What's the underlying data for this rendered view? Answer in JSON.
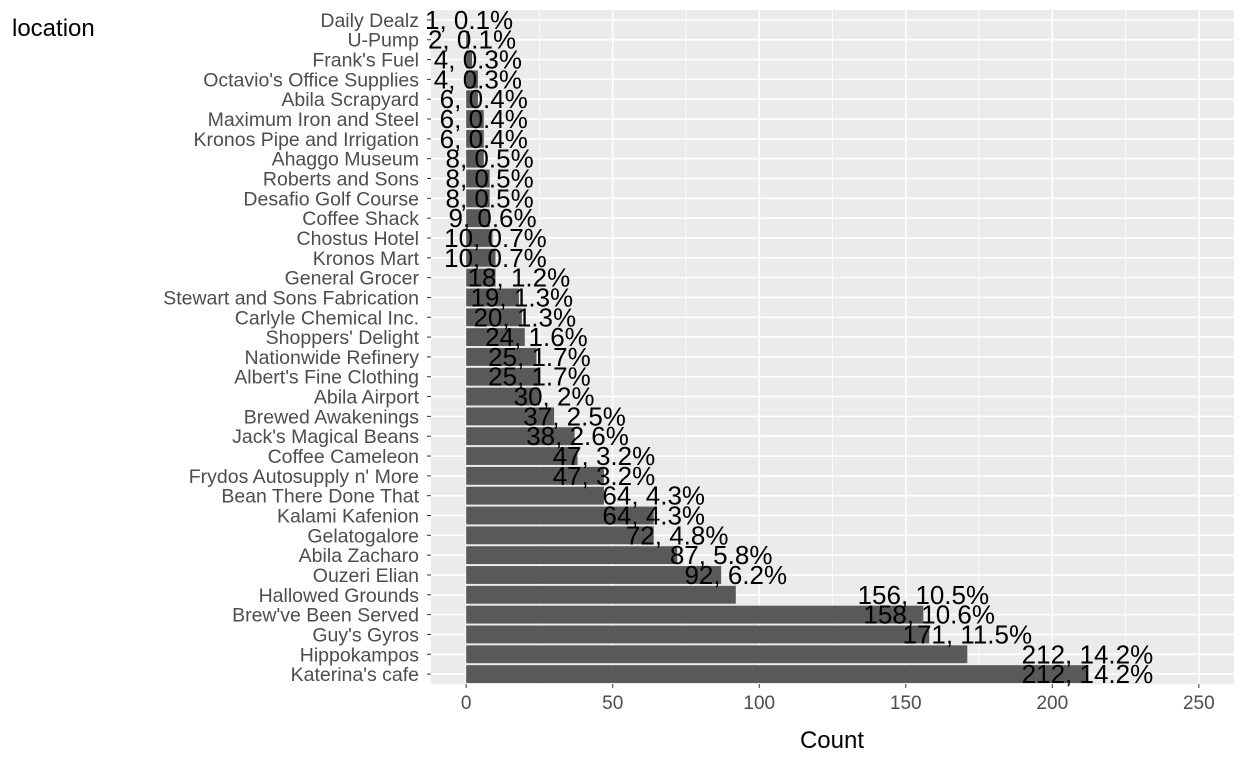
{
  "chart_data": {
    "type": "bar",
    "orientation": "horizontal",
    "title": "",
    "legend_title": "location",
    "xlabel": "Count",
    "ylabel": "",
    "xlim": [
      -12,
      262
    ],
    "x_ticks": [
      0,
      50,
      100,
      150,
      200,
      250
    ],
    "grid": true,
    "bar_color": "#595959",
    "panel_color": "#EBEBEB",
    "categories": [
      "Daily Dealz",
      "U-Pump",
      "Frank's Fuel",
      "Octavio's Office Supplies",
      "Abila Scrapyard",
      "Maximum Iron and Steel",
      "Kronos Pipe and Irrigation",
      "Ahaggo Museum",
      "Roberts and Sons",
      "Desafio Golf Course",
      "Coffee Shack",
      "Chostus Hotel",
      "Kronos Mart",
      "General Grocer",
      "Stewart and Sons Fabrication",
      "Carlyle Chemical Inc.",
      "Shoppers' Delight",
      "Nationwide Refinery",
      "Albert's Fine Clothing",
      "Abila Airport",
      "Brewed Awakenings",
      "Jack's Magical Beans",
      "Coffee Cameleon",
      "Frydos Autosupply n' More",
      "Bean There Done That",
      "Kalami Kafenion",
      "Gelatogalore",
      "Abila Zacharo",
      "Ouzeri Elian",
      "Hallowed Grounds",
      "Brew've Been Served",
      "Guy's Gyros",
      "Hippokampos",
      "Katerina's cafe"
    ],
    "values": [
      1,
      2,
      4,
      4,
      6,
      6,
      6,
      8,
      8,
      8,
      9,
      10,
      10,
      18,
      19,
      20,
      24,
      25,
      25,
      30,
      37,
      38,
      47,
      47,
      64,
      64,
      72,
      87,
      92,
      156,
      158,
      171,
      212,
      212
    ],
    "labels": [
      "1, 0.1%",
      "2, 0.1%",
      "4, 0.3%",
      "4, 0.3%",
      "6, 0.4%",
      "6, 0.4%",
      "6, 0.4%",
      "8, 0.5%",
      "8, 0.5%",
      "8, 0.5%",
      "9, 0.6%",
      "10, 0.7%",
      "10, 0.7%",
      "18, 1.2%",
      "19, 1.3%",
      "20, 1.3%",
      "24, 1.6%",
      "25, 1.7%",
      "25, 1.7%",
      "30, 2%",
      "37, 2.5%",
      "38, 2.6%",
      "47, 3.2%",
      "47, 3.2%",
      "64, 4.3%",
      "64, 4.3%",
      "72, 4.8%",
      "87, 5.8%",
      "92, 6.2%",
      "156, 10.5%",
      "158, 10.6%",
      "171, 11.5%",
      "212, 14.2%",
      "212, 14.2%"
    ],
    "bar_values": [
      0,
      1,
      2,
      4,
      4,
      6,
      6,
      6,
      8,
      8,
      8,
      9,
      10,
      10,
      18,
      19,
      20,
      24,
      25,
      25,
      30,
      37,
      38,
      47,
      47,
      64,
      64,
      72,
      87,
      92,
      156,
      158,
      171,
      212
    ]
  }
}
